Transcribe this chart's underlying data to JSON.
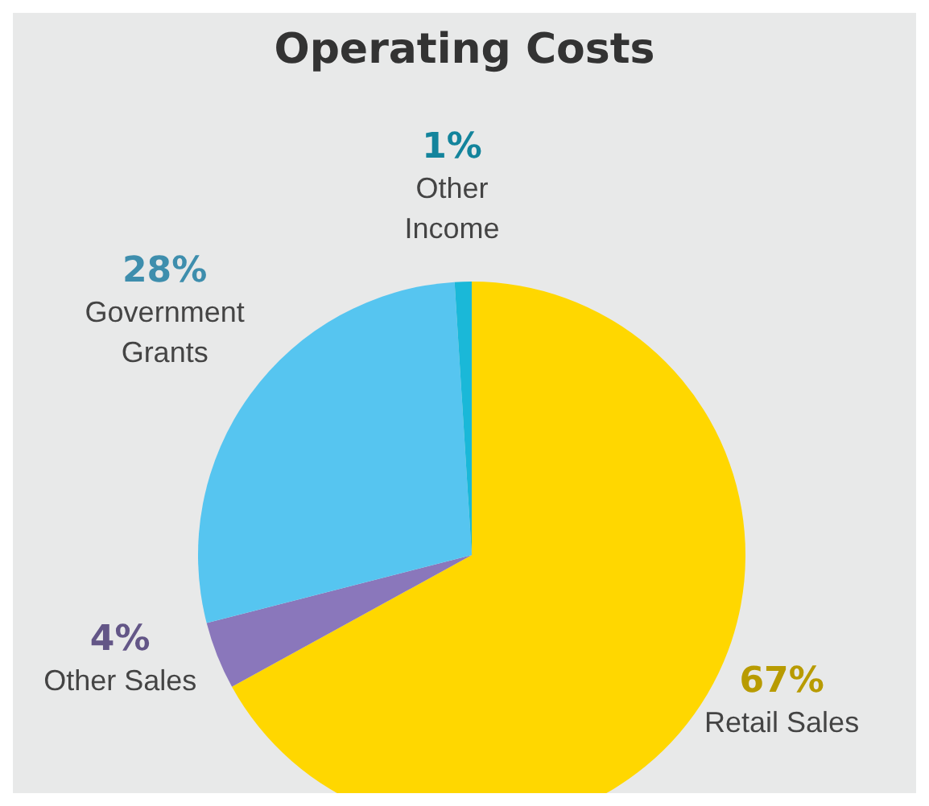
{
  "chart_data": {
    "type": "pie",
    "title": "Operating Costs",
    "categories": [
      "Retail Sales",
      "Other Sales",
      "Government Grants",
      "Other Income"
    ],
    "values": [
      67,
      4,
      28,
      1
    ],
    "value_labels": [
      "67%",
      "4%",
      "28%",
      "1%"
    ],
    "colors": [
      "#ffd700",
      "#8a77bb",
      "#56c5f0",
      "#1ab8d8"
    ],
    "legend": false
  }
}
